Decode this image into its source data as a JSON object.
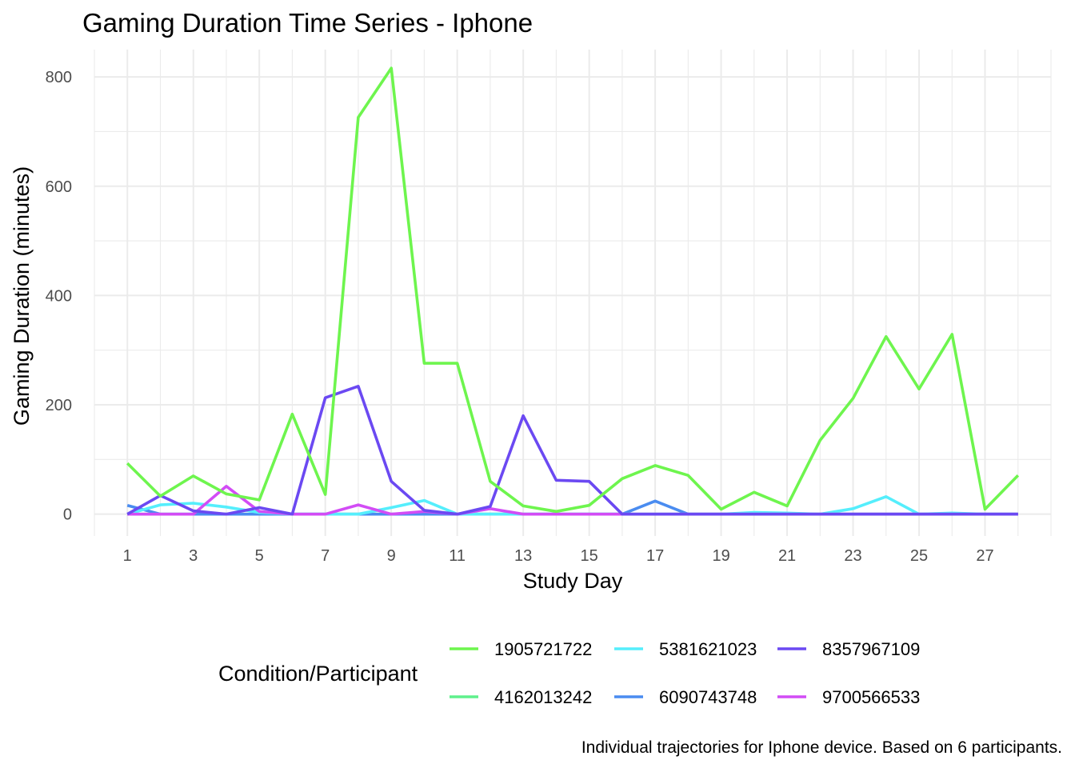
{
  "chart_data": {
    "type": "line",
    "title": "Gaming Duration Time Series - Iphone",
    "xlabel": "Study Day",
    "ylabel": "Gaming Duration (minutes)",
    "xlim": [
      0,
      29
    ],
    "ylim": [
      -40,
      850
    ],
    "xticks": [
      1,
      3,
      5,
      7,
      9,
      11,
      13,
      15,
      17,
      19,
      21,
      23,
      25,
      27
    ],
    "yticks": [
      0,
      200,
      400,
      600,
      800
    ],
    "grid": true,
    "legend_title": "Condition/Participant",
    "legend_position": "bottom",
    "caption": "Individual trajectories for Iphone device. Based on 6 participants.",
    "x": [
      1,
      2,
      3,
      4,
      5,
      6,
      7,
      8,
      9,
      10,
      11,
      12,
      13,
      14,
      15,
      16,
      17,
      18,
      19,
      20,
      21,
      22,
      23,
      24,
      25,
      26,
      27,
      28
    ],
    "series": [
      {
        "name": "4162013242",
        "color": "#5ff08c",
        "values": [
          0,
          0,
          0,
          0,
          0,
          0,
          0,
          0,
          0,
          0,
          0,
          0,
          0,
          0,
          0,
          0,
          0,
          0,
          0,
          0,
          0,
          0,
          0,
          0,
          0,
          0,
          0,
          0
        ]
      },
      {
        "name": "6090743748",
        "color": "#4a8cf0",
        "values": [
          16,
          0,
          0,
          0,
          0,
          0,
          0,
          0,
          0,
          0,
          0,
          0,
          0,
          0,
          0,
          0,
          24,
          0,
          0,
          0,
          0,
          0,
          0,
          0,
          0,
          0,
          0,
          0
        ]
      },
      {
        "name": "5381621023",
        "color": "#55eefc",
        "values": [
          0,
          17,
          20,
          13,
          3,
          0,
          0,
          0,
          12,
          25,
          0,
          0,
          0,
          0,
          0,
          0,
          0,
          0,
          0,
          3,
          2,
          0,
          10,
          32,
          0,
          2,
          0,
          0
        ]
      },
      {
        "name": "9700566533",
        "color": "#d24cf5",
        "values": [
          0,
          0,
          0,
          51,
          5,
          0,
          0,
          17,
          0,
          5,
          0,
          10,
          0,
          0,
          0,
          0,
          0,
          0,
          0,
          0,
          0,
          0,
          0,
          0,
          0,
          0,
          0,
          0
        ]
      },
      {
        "name": "8357967109",
        "color": "#6b49f2",
        "values": [
          0,
          34,
          6,
          0,
          12,
          0,
          213,
          234,
          60,
          7,
          0,
          14,
          180,
          62,
          60,
          0,
          0,
          0,
          0,
          0,
          0,
          0,
          0,
          0,
          0,
          0,
          0,
          0
        ]
      },
      {
        "name": "1905721722",
        "color": "#6ef54e",
        "values": [
          93,
          33,
          70,
          37,
          26,
          183,
          36,
          726,
          816,
          276,
          276,
          60,
          15,
          5,
          16,
          65,
          89,
          71,
          9,
          40,
          15,
          135,
          212,
          325,
          229,
          329,
          9,
          71
        ]
      }
    ],
    "legend_order": [
      "1905721722",
      "5381621023",
      "8357967109",
      "4162013242",
      "6090743748",
      "9700566533"
    ]
  }
}
